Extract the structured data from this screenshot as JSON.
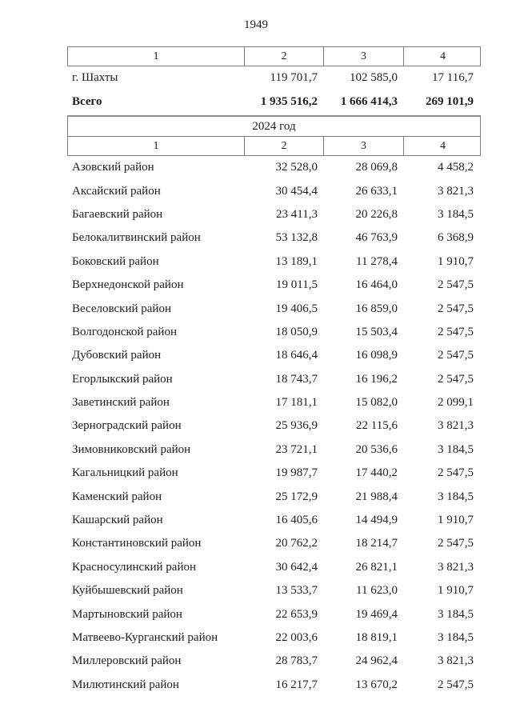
{
  "page": {
    "number": "1949"
  },
  "table1": {
    "headers": [
      "1",
      "2",
      "3",
      "4"
    ],
    "rows": [
      {
        "name": "г. Шахты",
        "c2": "119 701,7",
        "c3": "102 585,0",
        "c4": "17 116,7",
        "bold": false
      },
      {
        "name": "Всего",
        "c2": "1 935 516,2",
        "c3": "1 666 414,3",
        "c4": "269 101,9",
        "bold": true
      }
    ]
  },
  "table2": {
    "year_header": "2024 год",
    "headers": [
      "1",
      "2",
      "3",
      "4"
    ],
    "rows": [
      {
        "name": "Азовский район",
        "c2": "32 528,0",
        "c3": "28 069,8",
        "c4": "4 458,2",
        "bold": false
      },
      {
        "name": "Аксайский район",
        "c2": "30 454,4",
        "c3": "26 633,1",
        "c4": "3 821,3",
        "bold": false
      },
      {
        "name": "Багаевский район",
        "c2": "23 411,3",
        "c3": "20 226,8",
        "c4": "3 184,5",
        "bold": false
      },
      {
        "name": "Белокалитвинский район",
        "c2": "53 132,8",
        "c3": "46 763,9",
        "c4": "6 368,9",
        "bold": false
      },
      {
        "name": "Боковский район",
        "c2": "13 189,1",
        "c3": "11 278,4",
        "c4": "1 910,7",
        "bold": false
      },
      {
        "name": "Верхнедонской район",
        "c2": "19 011,5",
        "c3": "16 464,0",
        "c4": "2 547,5",
        "bold": false
      },
      {
        "name": "Веселовский район",
        "c2": "19 406,5",
        "c3": "16 859,0",
        "c4": "2 547,5",
        "bold": false
      },
      {
        "name": "Волгодонской район",
        "c2": "18 050,9",
        "c3": "15 503,4",
        "c4": "2 547,5",
        "bold": false
      },
      {
        "name": "Дубовский район",
        "c2": "18 646,4",
        "c3": "16 098,9",
        "c4": "2 547,5",
        "bold": false
      },
      {
        "name": "Егорлыкский район",
        "c2": "18 743,7",
        "c3": "16 196,2",
        "c4": "2 547,5",
        "bold": false
      },
      {
        "name": "Заветинский район",
        "c2": "17 181,1",
        "c3": "15 082,0",
        "c4": "2 099,1",
        "bold": false
      },
      {
        "name": "Зерноградский район",
        "c2": "25 936,9",
        "c3": "22 115,6",
        "c4": "3 821,3",
        "bold": false
      },
      {
        "name": "Зимовниковский район",
        "c2": "23 721,1",
        "c3": "20 536,6",
        "c4": "3 184,5",
        "bold": false
      },
      {
        "name": "Кагальницкий район",
        "c2": "19 987,7",
        "c3": "17 440,2",
        "c4": "2 547,5",
        "bold": false
      },
      {
        "name": "Каменский район",
        "c2": "25 172,9",
        "c3": "21 988,4",
        "c4": "3 184,5",
        "bold": false
      },
      {
        "name": "Кашарский район",
        "c2": "16 405,6",
        "c3": "14 494,9",
        "c4": "1 910,7",
        "bold": false
      },
      {
        "name": "Константиновский район",
        "c2": "20 762,2",
        "c3": "18 214,7",
        "c4": "2 547,5",
        "bold": false
      },
      {
        "name": "Красносулинский район",
        "c2": "30 642,4",
        "c3": "26 821,1",
        "c4": "3 821,3",
        "bold": false
      },
      {
        "name": "Куйбышевский район",
        "c2": "13 533,7",
        "c3": "11 623,0",
        "c4": "1 910,7",
        "bold": false
      },
      {
        "name": "Мартыновский район",
        "c2": "22 653,9",
        "c3": "19 469,4",
        "c4": "3 184,5",
        "bold": false
      },
      {
        "name": "Матвеево-Курганский район",
        "c2": "22 003,6",
        "c3": "18 819,1",
        "c4": "3 184,5",
        "bold": false
      },
      {
        "name": "Миллеровский район",
        "c2": "28 783,7",
        "c3": "24 962,4",
        "c4": "3 821,3",
        "bold": false
      },
      {
        "name": "Милютинский район",
        "c2": "16 217,7",
        "c3": "13 670,2",
        "c4": "2 547,5",
        "bold": false
      }
    ]
  }
}
